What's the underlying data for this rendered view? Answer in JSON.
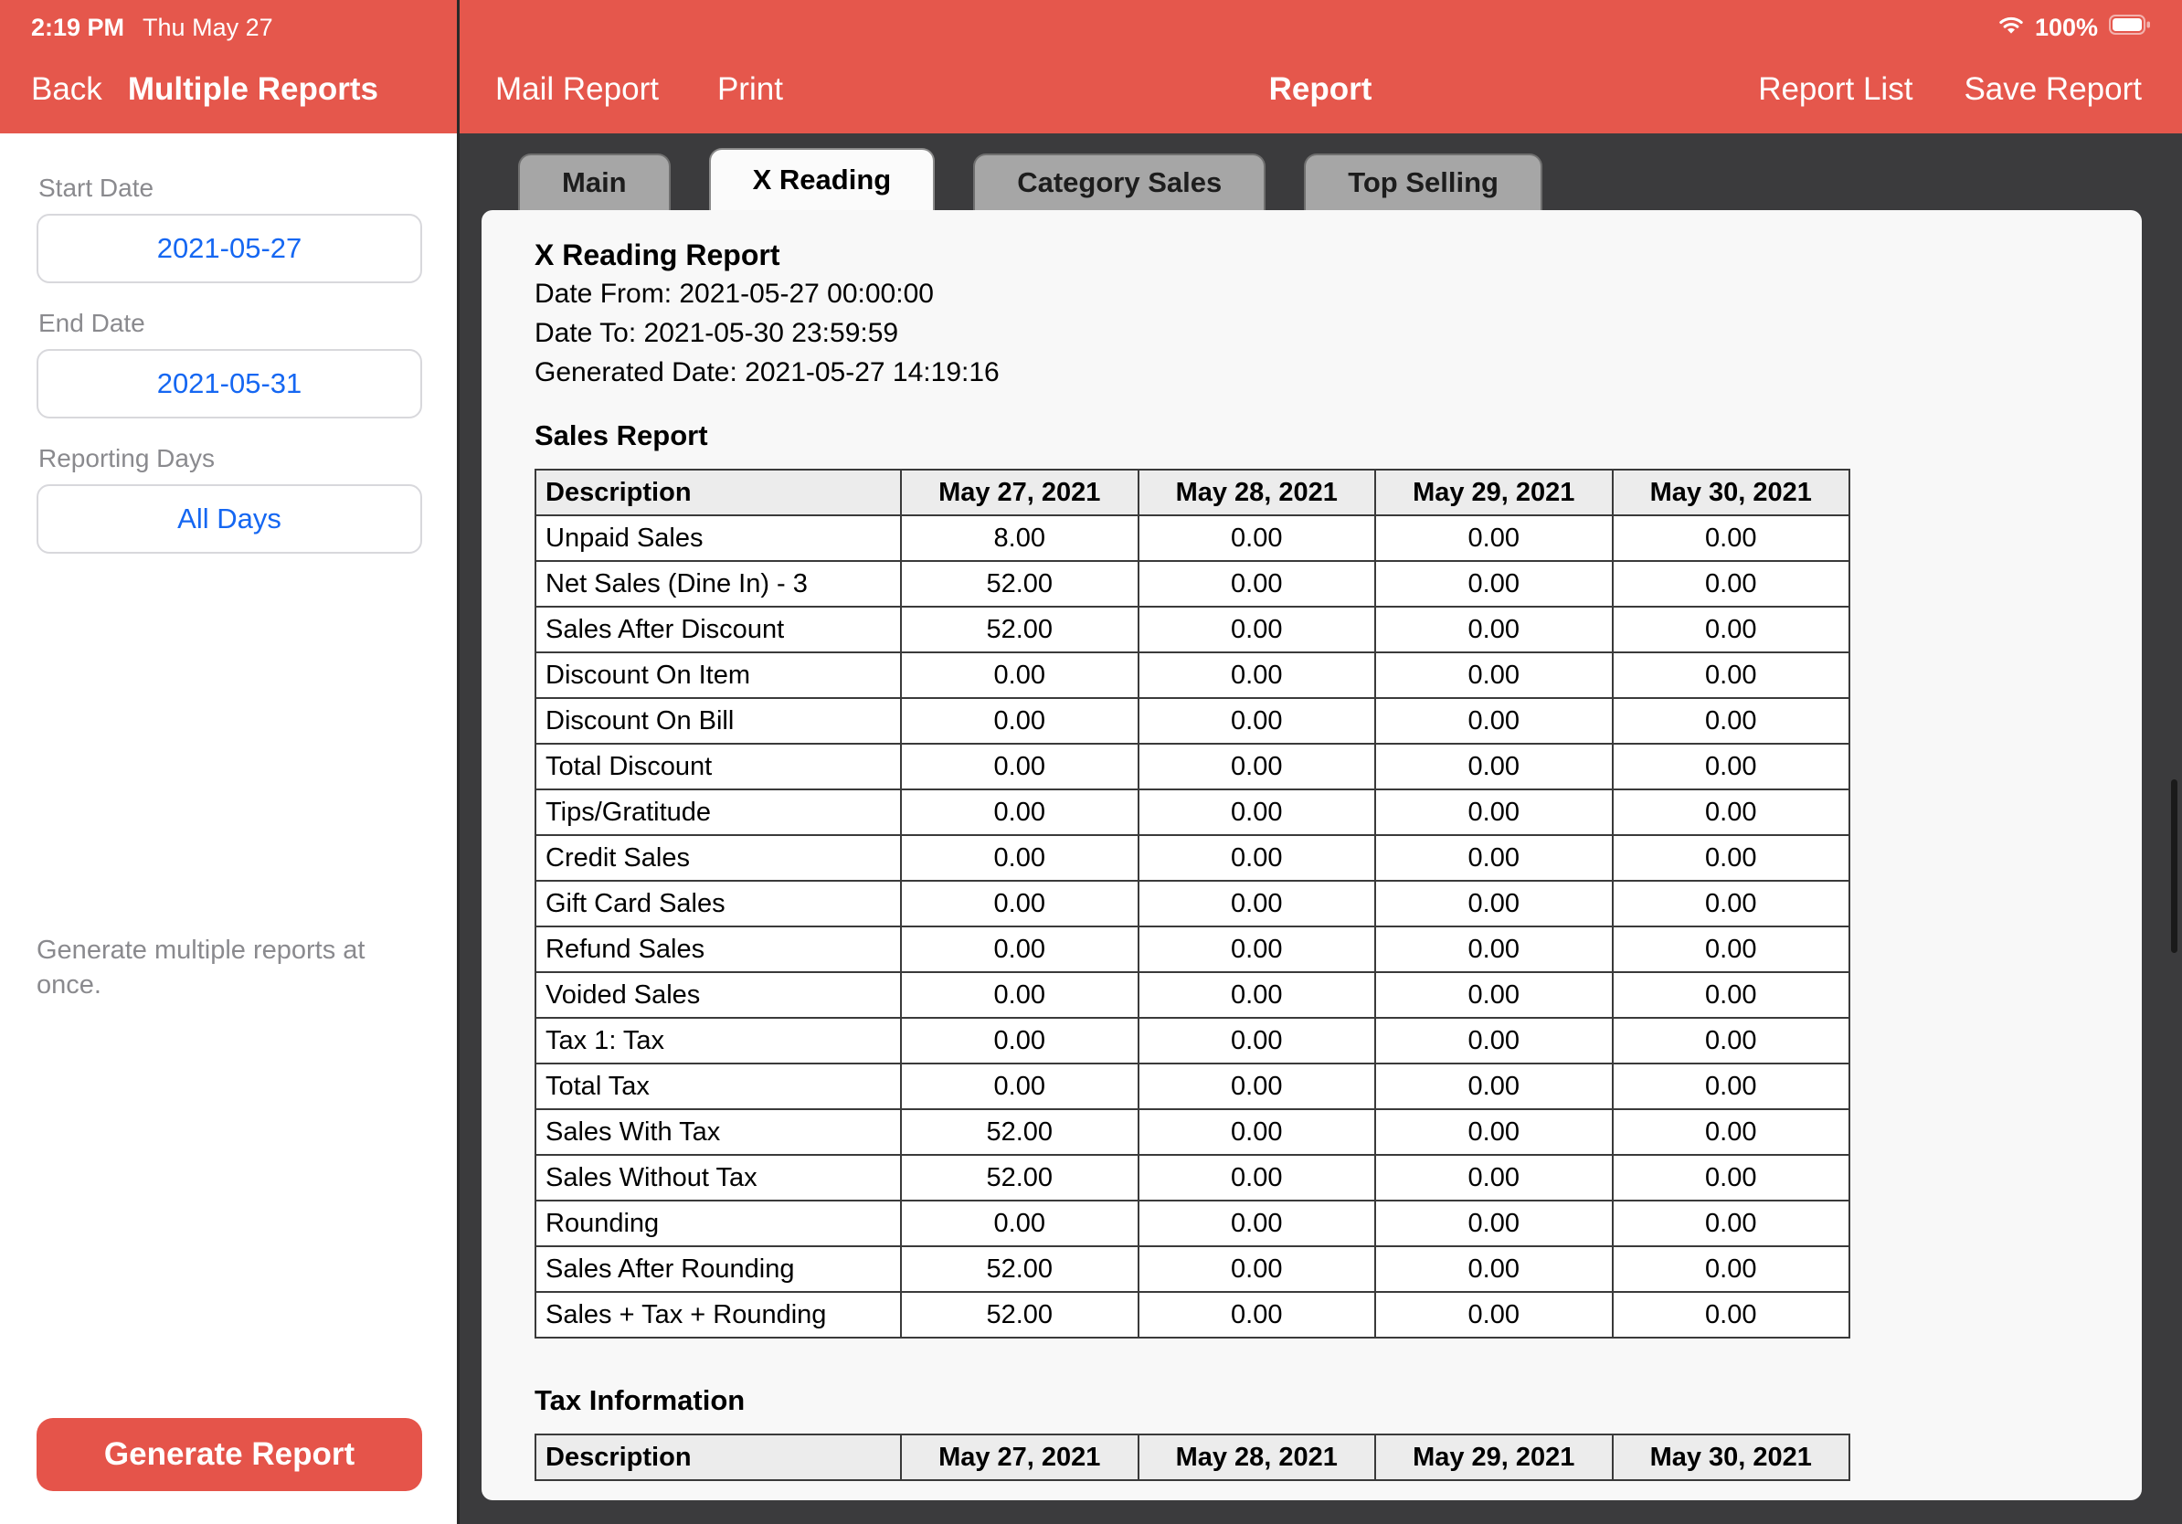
{
  "colors": {
    "accent_red": "#E5574C",
    "link_blue": "#1567F2"
  },
  "status_bar": {
    "time": "2:19 PM",
    "date": "Thu May 27",
    "wifi_icon": "wifi-icon",
    "battery_percent": "100%",
    "battery_icon": "battery-icon"
  },
  "nav": {
    "back_label": "Back",
    "panel_title": "Multiple Reports",
    "mail_report_label": "Mail Report",
    "print_label": "Print",
    "title": "Report",
    "report_list_label": "Report List",
    "save_report_label": "Save Report"
  },
  "sidebar": {
    "start_date_label": "Start Date",
    "start_date_value": "2021-05-27",
    "end_date_label": "End Date",
    "end_date_value": "2021-05-31",
    "reporting_days_label": "Reporting Days",
    "reporting_days_value": "All Days",
    "hint": "Generate multiple reports at once.",
    "generate_button_label": "Generate Report"
  },
  "tabs": [
    {
      "label": "Main",
      "active": false
    },
    {
      "label": "X Reading",
      "active": true
    },
    {
      "label": "Category Sales",
      "active": false
    },
    {
      "label": "Top Selling",
      "active": false
    }
  ],
  "report": {
    "title": "X Reading Report",
    "date_from": "Date From: 2021-05-27 00:00:00",
    "date_to": "Date To: 2021-05-30 23:59:59",
    "generated_date": "Generated Date: 2021-05-27 14:19:16",
    "sales_section_title": "Sales Report",
    "tax_section_title": "Tax Information",
    "columns": [
      "Description",
      "May 27, 2021",
      "May 28, 2021",
      "May 29, 2021",
      "May 30, 2021"
    ],
    "sales_rows": [
      {
        "label": "Unpaid Sales",
        "values": [
          "8.00",
          "0.00",
          "0.00",
          "0.00"
        ]
      },
      {
        "label": "Net Sales (Dine In) - 3",
        "values": [
          "52.00",
          "0.00",
          "0.00",
          "0.00"
        ]
      },
      {
        "label": "Sales After Discount",
        "values": [
          "52.00",
          "0.00",
          "0.00",
          "0.00"
        ]
      },
      {
        "label": "Discount On Item",
        "values": [
          "0.00",
          "0.00",
          "0.00",
          "0.00"
        ]
      },
      {
        "label": "Discount On Bill",
        "values": [
          "0.00",
          "0.00",
          "0.00",
          "0.00"
        ]
      },
      {
        "label": "Total Discount",
        "values": [
          "0.00",
          "0.00",
          "0.00",
          "0.00"
        ]
      },
      {
        "label": "Tips/Gratitude",
        "values": [
          "0.00",
          "0.00",
          "0.00",
          "0.00"
        ]
      },
      {
        "label": "Credit Sales",
        "values": [
          "0.00",
          "0.00",
          "0.00",
          "0.00"
        ]
      },
      {
        "label": "Gift Card Sales",
        "values": [
          "0.00",
          "0.00",
          "0.00",
          "0.00"
        ]
      },
      {
        "label": "Refund Sales",
        "values": [
          "0.00",
          "0.00",
          "0.00",
          "0.00"
        ]
      },
      {
        "label": "Voided Sales",
        "values": [
          "0.00",
          "0.00",
          "0.00",
          "0.00"
        ]
      },
      {
        "label": "Tax 1: Tax",
        "values": [
          "0.00",
          "0.00",
          "0.00",
          "0.00"
        ]
      },
      {
        "label": "Total Tax",
        "values": [
          "0.00",
          "0.00",
          "0.00",
          "0.00"
        ]
      },
      {
        "label": "Sales With Tax",
        "values": [
          "52.00",
          "0.00",
          "0.00",
          "0.00"
        ]
      },
      {
        "label": "Sales Without Tax",
        "values": [
          "52.00",
          "0.00",
          "0.00",
          "0.00"
        ]
      },
      {
        "label": "Rounding",
        "values": [
          "0.00",
          "0.00",
          "0.00",
          "0.00"
        ]
      },
      {
        "label": "Sales After Rounding",
        "values": [
          "52.00",
          "0.00",
          "0.00",
          "0.00"
        ]
      },
      {
        "label": "Sales + Tax + Rounding",
        "values": [
          "52.00",
          "0.00",
          "0.00",
          "0.00"
        ]
      }
    ],
    "tax_rows": []
  }
}
